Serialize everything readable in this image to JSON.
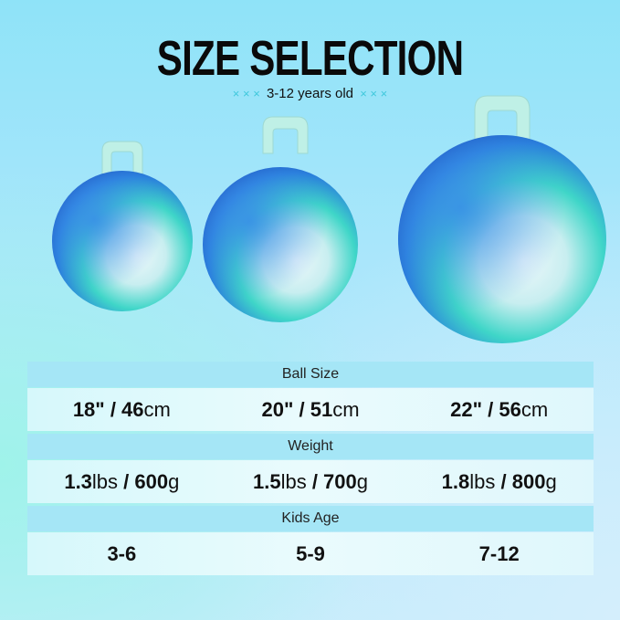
{
  "title": "SIZE SELECTION",
  "subtitle": {
    "decor": "× × ×",
    "text": "3-12 years old"
  },
  "colors": {
    "ball_blue": "#1f5fd0",
    "ball_teal": "#3fd6c8",
    "handle": "#bff0e6",
    "header_band": "#a5e6f6"
  },
  "table": {
    "rows": [
      {
        "header": "Ball Size",
        "cells": [
          [
            {
              "t": "18\" / 46",
              "b": true
            },
            {
              "t": "cm",
              "b": false
            }
          ],
          [
            {
              "t": "20\" / 51",
              "b": true
            },
            {
              "t": "cm",
              "b": false
            }
          ],
          [
            {
              "t": "22\" / 56",
              "b": true
            },
            {
              "t": "cm",
              "b": false
            }
          ]
        ]
      },
      {
        "header": "Weight",
        "cells": [
          [
            {
              "t": "1.3",
              "b": true
            },
            {
              "t": "lbs",
              "b": false
            },
            {
              "t": " / 600",
              "b": true
            },
            {
              "t": "g",
              "b": false
            }
          ],
          [
            {
              "t": "1.5",
              "b": true
            },
            {
              "t": "lbs",
              "b": false
            },
            {
              "t": " / 700",
              "b": true
            },
            {
              "t": "g",
              "b": false
            }
          ],
          [
            {
              "t": "1.8",
              "b": true
            },
            {
              "t": "lbs",
              "b": false
            },
            {
              "t": " / 800",
              "b": true
            },
            {
              "t": "g",
              "b": false
            }
          ]
        ]
      },
      {
        "header": "Kids Age",
        "cells": [
          [
            {
              "t": "3-6",
              "b": true
            }
          ],
          [
            {
              "t": "5-9",
              "b": true
            }
          ],
          [
            {
              "t": "7-12",
              "b": true
            }
          ]
        ]
      }
    ]
  }
}
